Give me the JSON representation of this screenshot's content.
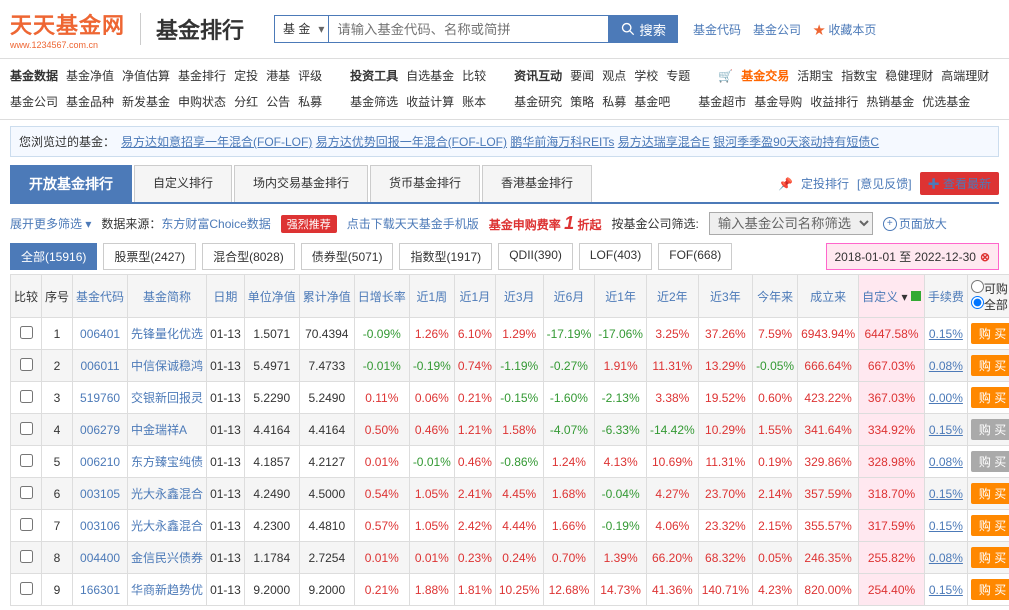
{
  "header": {
    "logo_main": "天天基金网",
    "logo_sub": "www.1234567.com.cn",
    "page_title": "基金排行",
    "search_type": "基 金",
    "search_placeholder": "请输入基金代码、名称或简拼",
    "search_btn": "搜索",
    "links": [
      "基金代码",
      "基金公司"
    ],
    "fav": "收藏本页"
  },
  "nav": {
    "row1": [
      {
        "label": "基金数据",
        "items": [
          "基金净值",
          "净值估算",
          "基金排行",
          "定投",
          "港基",
          "评级"
        ]
      },
      {
        "label": "投资工具",
        "items": [
          "自选基金",
          "比较"
        ]
      },
      {
        "label": "资讯互动",
        "items": [
          "要闻",
          "观点",
          "学校",
          "专题"
        ]
      },
      {
        "cart": "🛒",
        "highlight": "基金交易",
        "items": [
          "活期宝",
          "指数宝",
          "稳健理财",
          "高端理财"
        ]
      }
    ],
    "row2": [
      {
        "items": [
          "基金公司",
          "基金品种",
          "新发基金",
          "申购状态",
          "分红",
          "公告",
          "私募"
        ]
      },
      {
        "items": [
          "基金筛选",
          "收益计算",
          "账本"
        ]
      },
      {
        "items": [
          "基金研究",
          "策略",
          "私募",
          "基金吧"
        ]
      },
      {
        "items": [
          "基金超市",
          "基金导购",
          "收益排行",
          "热销基金",
          "优选基金"
        ]
      }
    ]
  },
  "history": {
    "label": "您浏览过的基金：",
    "items": [
      "易方达如意招享一年混合(FOF-LOF)",
      "易方达优势回报一年混合(FOF-LOF)",
      "鹏华前海万科REITs",
      "易方达瑞享混合E",
      "银河季季盈90天滚动持有短债C"
    ]
  },
  "tabs": {
    "items": [
      "开放基金排行",
      "自定义排行",
      "场内交易基金排行",
      "货币基金排行",
      "香港基金排行"
    ],
    "active": 0,
    "extras_link1": "定投排行",
    "extras_link2": "[意见反馈]",
    "extras_btn": "查看最新"
  },
  "filter": {
    "more": "展开更多筛选",
    "source_label": "数据来源：",
    "source": "东方财富Choice数据",
    "badge": "强烈推荐",
    "download": "点击下载天天基金手机版",
    "promo1": "基金申购费率",
    "promo_big": "1",
    "promo2": "折起",
    "company_label": "按基金公司筛选:",
    "company_placeholder": "输入基金公司名称筛选",
    "zoom": "页面放大"
  },
  "types": [
    {
      "label": "全部(15916)",
      "active": true
    },
    {
      "label": "股票型(2427)"
    },
    {
      "label": "混合型(8028)"
    },
    {
      "label": "债券型(5071)"
    },
    {
      "label": "指数型(1917)"
    },
    {
      "label": "QDII(390)"
    },
    {
      "label": "LOF(403)"
    },
    {
      "label": "FOF(668)"
    }
  ],
  "date_range": "2018-01-01 至 2022-12-30",
  "columns": [
    "比较",
    "序号",
    "基金代码",
    "基金简称",
    "日期",
    "单位净值",
    "累计净值",
    "日增长率",
    "近1周",
    "近1月",
    "近3月",
    "近6月",
    "近1年",
    "近2年",
    "近3年",
    "今年来",
    "成立来",
    "自定义",
    "手续费",
    ""
  ],
  "radio": {
    "opt1": "可购",
    "opt2": "全部"
  },
  "rows": [
    {
      "idx": 1,
      "code": "006401",
      "name": "先锋量化优选",
      "date": "01-13",
      "nav": "1.5071",
      "cum": "70.4394",
      "day": "-0.09%",
      "w1": "1.26%",
      "m1": "6.10%",
      "m3": "1.29%",
      "m6": "-17.19%",
      "y1": "-17.06%",
      "y2": "3.25%",
      "y3": "37.26%",
      "ytd": "7.59%",
      "since": "6943.94%",
      "custom": "6447.58%",
      "fee": "0.15%",
      "buy": true
    },
    {
      "idx": 2,
      "code": "006011",
      "name": "中信保诚稳鸿",
      "date": "01-13",
      "nav": "5.4971",
      "cum": "7.4733",
      "day": "-0.01%",
      "w1": "-0.19%",
      "m1": "0.74%",
      "m3": "-1.19%",
      "m6": "-0.27%",
      "y1": "1.91%",
      "y2": "11.31%",
      "y3": "13.29%",
      "ytd": "-0.05%",
      "since": "666.64%",
      "custom": "667.03%",
      "fee": "0.08%",
      "buy": true
    },
    {
      "idx": 3,
      "code": "519760",
      "name": "交银新回报灵",
      "date": "01-13",
      "nav": "5.2290",
      "cum": "5.2490",
      "day": "0.11%",
      "w1": "0.06%",
      "m1": "0.21%",
      "m3": "-0.15%",
      "m6": "-1.60%",
      "y1": "-2.13%",
      "y2": "3.38%",
      "y3": "19.52%",
      "ytd": "0.60%",
      "since": "423.22%",
      "custom": "367.03%",
      "fee": "0.00%",
      "buy": true
    },
    {
      "idx": 4,
      "code": "006279",
      "name": "中金瑞祥A",
      "date": "01-13",
      "nav": "4.4164",
      "cum": "4.4164",
      "day": "0.50%",
      "w1": "0.46%",
      "m1": "1.21%",
      "m3": "1.58%",
      "m6": "-4.07%",
      "y1": "-6.33%",
      "y2": "-14.42%",
      "y3": "10.29%",
      "ytd": "1.55%",
      "since": "341.64%",
      "custom": "334.92%",
      "fee": "0.15%",
      "buy": false
    },
    {
      "idx": 5,
      "code": "006210",
      "name": "东方臻宝纯债",
      "date": "01-13",
      "nav": "4.1857",
      "cum": "4.2127",
      "day": "0.01%",
      "w1": "-0.01%",
      "m1": "0.46%",
      "m3": "-0.86%",
      "m6": "1.24%",
      "y1": "4.13%",
      "y2": "10.69%",
      "y3": "11.31%",
      "ytd": "0.19%",
      "since": "329.86%",
      "custom": "328.98%",
      "fee": "0.08%",
      "buy": false
    },
    {
      "idx": 6,
      "code": "003105",
      "name": "光大永鑫混合",
      "date": "01-13",
      "nav": "4.2490",
      "cum": "4.5000",
      "day": "0.54%",
      "w1": "1.05%",
      "m1": "2.41%",
      "m3": "4.45%",
      "m6": "1.68%",
      "y1": "-0.04%",
      "y2": "4.27%",
      "y3": "23.70%",
      "ytd": "2.14%",
      "since": "357.59%",
      "custom": "318.70%",
      "fee": "0.15%",
      "buy": true
    },
    {
      "idx": 7,
      "code": "003106",
      "name": "光大永鑫混合",
      "date": "01-13",
      "nav": "4.2300",
      "cum": "4.4810",
      "day": "0.57%",
      "w1": "1.05%",
      "m1": "2.42%",
      "m3": "4.44%",
      "m6": "1.66%",
      "y1": "-0.19%",
      "y2": "4.06%",
      "y3": "23.32%",
      "ytd": "2.15%",
      "since": "355.57%",
      "custom": "317.59%",
      "fee": "0.15%",
      "buy": true
    },
    {
      "idx": 8,
      "code": "004400",
      "name": "金信民兴债券",
      "date": "01-13",
      "nav": "1.1784",
      "cum": "2.7254",
      "day": "0.01%",
      "w1": "0.01%",
      "m1": "0.23%",
      "m3": "0.24%",
      "m6": "0.70%",
      "y1": "1.39%",
      "y2": "66.20%",
      "y3": "68.32%",
      "ytd": "0.05%",
      "since": "246.35%",
      "custom": "255.82%",
      "fee": "0.08%",
      "buy": true
    },
    {
      "idx": 9,
      "code": "166301",
      "name": "华商新趋势优",
      "date": "01-13",
      "nav": "9.2000",
      "cum": "9.2000",
      "day": "0.21%",
      "w1": "1.88%",
      "m1": "1.81%",
      "m3": "10.25%",
      "m6": "12.68%",
      "y1": "14.73%",
      "y2": "41.36%",
      "y3": "140.71%",
      "ytd": "4.23%",
      "since": "820.00%",
      "custom": "254.40%",
      "fee": "0.15%",
      "buy": true
    }
  ]
}
